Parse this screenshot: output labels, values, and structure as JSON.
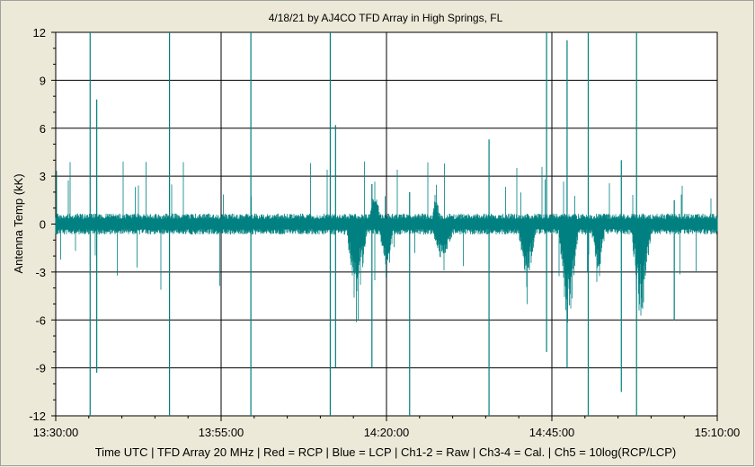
{
  "chart_data": {
    "type": "line",
    "title": "4/18/21  by  AJ4CO TFD Array  in  High Springs, FL",
    "xlabel": "Time UTC | TFD Array 20 MHz | Red = RCP | Blue = LCP | Ch1-2 = Raw | Ch3-4 = Cal. | Ch5 = 10log(RCP/LCP)",
    "ylabel": "Antenna Temp (kK)",
    "x_tick_labels": [
      "13:30:00",
      "13:55:00",
      "14:20:00",
      "14:45:00",
      "15:10:00"
    ],
    "x_ticks_minutes": [
      0,
      25,
      50,
      75,
      100
    ],
    "xlim_minutes_after_13_30": [
      0,
      100
    ],
    "y_tick_labels": [
      "12",
      "9",
      "6",
      "3",
      "0",
      "-3",
      "-6",
      "-9",
      "-12"
    ],
    "ylim": [
      -12,
      12
    ],
    "y_major_step": 3,
    "grid": true,
    "legend": "none",
    "series_color": "#008080",
    "plot_background": "#ffffff",
    "series": [
      {
        "baseline_band": [
          -0.6,
          0.6
        ],
        "spikes": [
          {
            "t": 5.2,
            "top": 12,
            "bottom": -12
          },
          {
            "t": 6.2,
            "top": 7.8,
            "bottom": -9.3
          },
          {
            "t": 17.2,
            "top": 12,
            "bottom": -12
          },
          {
            "t": 29.5,
            "top": 12,
            "bottom": -12
          },
          {
            "t": 41.5,
            "top": 12,
            "bottom": -12
          },
          {
            "t": 42.3,
            "top": 6.2,
            "bottom": -9.0
          },
          {
            "t": 47.8,
            "top": 2.5,
            "bottom": -9.0
          },
          {
            "t": 53.5,
            "top": 2.0,
            "bottom": -12
          },
          {
            "t": 65.5,
            "top": 5.3,
            "bottom": -12
          },
          {
            "t": 74.2,
            "top": 12,
            "bottom": -8.0
          },
          {
            "t": 77.3,
            "top": 11.5,
            "bottom": -9.0
          },
          {
            "t": 80.5,
            "top": 12,
            "bottom": -12
          },
          {
            "t": 85.5,
            "top": 4.0,
            "bottom": -10.5
          },
          {
            "t": 87.8,
            "top": 12,
            "bottom": -12
          },
          {
            "t": 93.5,
            "top": 1.5,
            "bottom": -6.0
          }
        ],
        "dips": [
          {
            "t_start": 44,
            "t_end": 47,
            "min": -6.2
          },
          {
            "t_start": 49,
            "t_end": 51,
            "min": -4.5
          },
          {
            "t_start": 57,
            "t_end": 60,
            "min": -3.0
          },
          {
            "t_start": 70,
            "t_end": 72.5,
            "min": -5.5
          },
          {
            "t_start": 76,
            "t_end": 79,
            "min": -7.5
          },
          {
            "t_start": 81,
            "t_end": 83,
            "min": -4.0
          },
          {
            "t_start": 87,
            "t_end": 90,
            "min": -7.5
          }
        ],
        "bumps": [
          {
            "t_start": 47.5,
            "t_end": 49,
            "max": 3.0
          },
          {
            "t_start": 57,
            "t_end": 58,
            "max": 2.5
          }
        ]
      }
    ]
  }
}
